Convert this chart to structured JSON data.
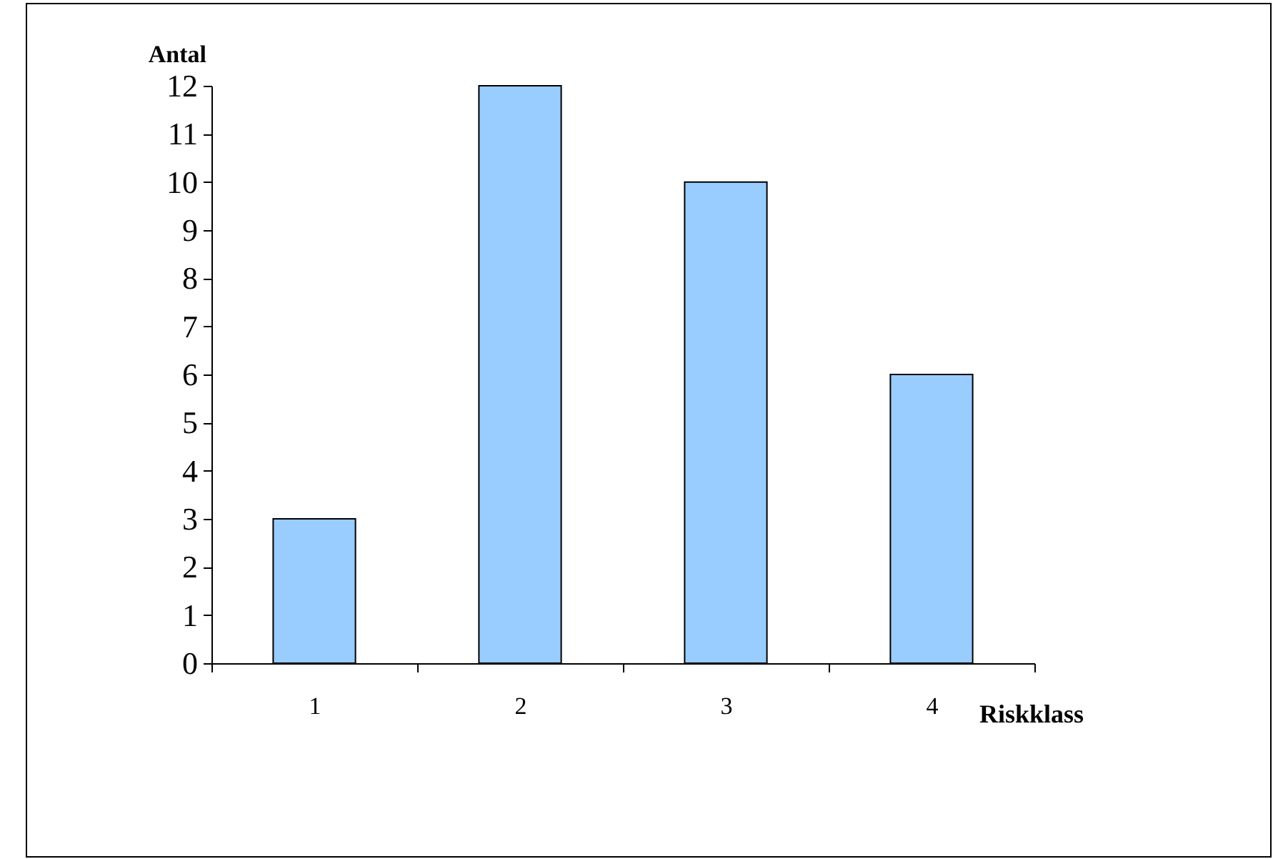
{
  "chart_data": {
    "type": "bar",
    "xlabel": "Riskklass",
    "ylabel": "Antal",
    "categories": [
      "1",
      "2",
      "3",
      "4"
    ],
    "values": [
      3,
      12,
      10,
      6
    ],
    "color": "#99ccff",
    "ylim": [
      0,
      12
    ],
    "yticks": [
      0,
      1,
      2,
      3,
      4,
      5,
      6,
      7,
      8,
      9,
      10,
      11,
      12
    ],
    "grid": false
  }
}
